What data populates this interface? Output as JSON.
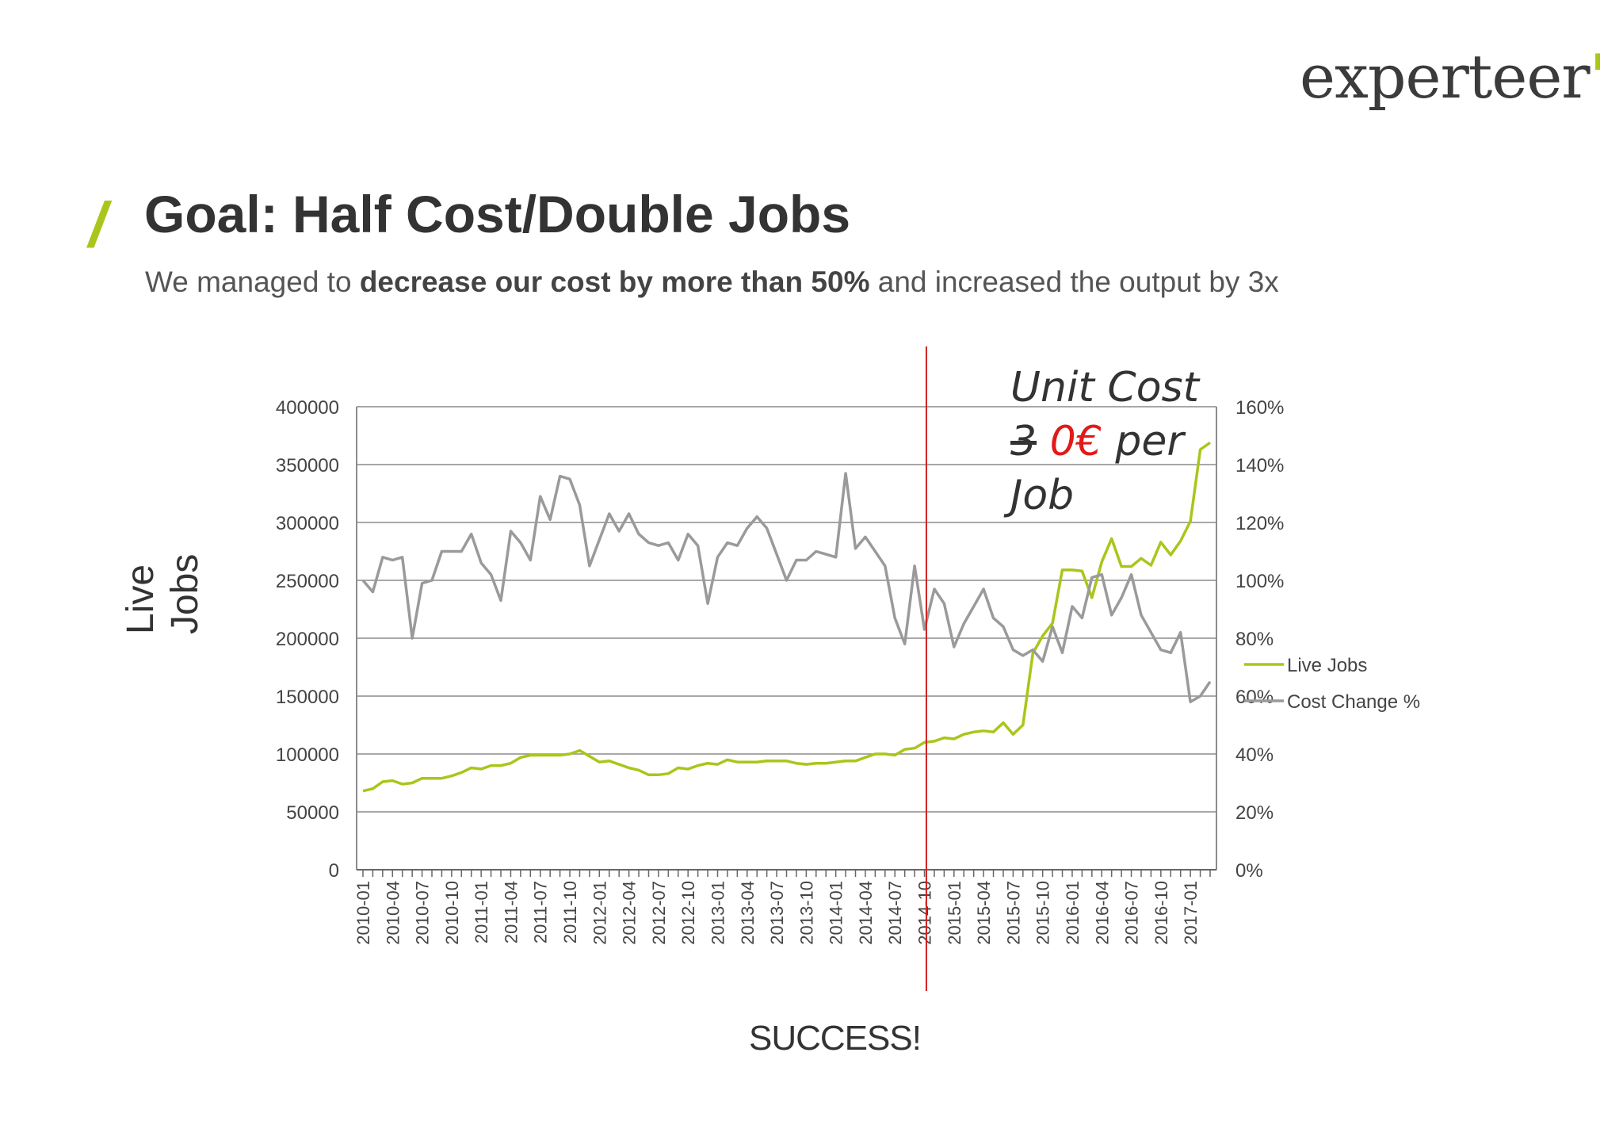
{
  "brand": {
    "logo": "experteer",
    "logo_mark": "'"
  },
  "header": {
    "title": "Goal: Half Cost/Double Jobs",
    "subtitle_pre": "We managed to ",
    "subtitle_bold": "decrease our cost by more than 50%",
    "subtitle_post": " and increased the output by 3x"
  },
  "annotation": {
    "line1": "Unit Cost",
    "old_value": "3",
    "new_value": "0€",
    "per": " per",
    "line3": "Job"
  },
  "footer": {
    "success": "SUCCESS!"
  },
  "y_axis_title": "Live Jobs",
  "colors": {
    "accent": "#a9c61a",
    "gray_series": "#9a9a9a",
    "marker": "#d02020",
    "highlight": "#e11a1a"
  },
  "chart_data": {
    "type": "line",
    "title": "",
    "xlabel": "",
    "ylabel": "Live Jobs",
    "ylim": [
      0,
      400000
    ],
    "y2lim": [
      0,
      1.6
    ],
    "y_ticks": [
      "0",
      "50000",
      "100000",
      "150000",
      "200000",
      "250000",
      "300000",
      "350000",
      "400000"
    ],
    "y2_ticks": [
      "0%",
      "20%",
      "40%",
      "60%",
      "80%",
      "100%",
      "120%",
      "140%",
      "160%"
    ],
    "x_tick_labels": [
      "2010-01",
      "2010-04",
      "2010-07",
      "2010-10",
      "2011-01",
      "2011-04",
      "2011-07",
      "2011-10",
      "2012-01",
      "2012-04",
      "2012-07",
      "2012-10",
      "2013-01",
      "2013-04",
      "2013-07",
      "2013-10",
      "2014-01",
      "2014-04",
      "2014-07",
      "2014-10",
      "2015-01",
      "2015-04",
      "2015-07",
      "2015-10",
      "2016-01",
      "2016-04",
      "2016-07",
      "2016-10",
      "2017-01"
    ],
    "x_start": "2010-01",
    "marker_at": "2014-11",
    "legend": [
      "Live Jobs",
      "Cost Change %"
    ],
    "legend_position": "right",
    "series": [
      {
        "name": "Live Jobs",
        "axis": "left",
        "color": "#a9c61a",
        "values": [
          68000,
          70000,
          76000,
          77000,
          74000,
          75000,
          79000,
          79000,
          79000,
          81000,
          84000,
          88000,
          87000,
          90000,
          90000,
          92000,
          97000,
          99000,
          99000,
          99000,
          99000,
          100000,
          103000,
          98000,
          93000,
          94000,
          91000,
          88000,
          86000,
          82000,
          82000,
          83000,
          88000,
          87000,
          90000,
          92000,
          91000,
          95000,
          93000,
          93000,
          93000,
          94000,
          94000,
          94000,
          92000,
          91000,
          92000,
          92000,
          93000,
          94000,
          94000,
          97000,
          100000,
          100000,
          99000,
          104000,
          105000,
          110000,
          111000,
          114000,
          113000,
          117000,
          119000,
          120000,
          119000,
          127000,
          117000,
          125000,
          187000,
          202000,
          213000,
          259000,
          259000,
          258000,
          235000,
          266000,
          286000,
          262000,
          262000,
          269000,
          263000,
          283000,
          272000,
          284000,
          301000,
          363000,
          369000
        ]
      },
      {
        "name": "Cost Change %",
        "axis": "right",
        "color": "#9a9a9a",
        "values": [
          1.0,
          0.96,
          1.08,
          1.07,
          1.08,
          0.8,
          0.99,
          1.0,
          1.1,
          1.1,
          1.1,
          1.16,
          1.06,
          1.02,
          0.93,
          1.17,
          1.13,
          1.07,
          1.29,
          1.21,
          1.36,
          1.35,
          1.26,
          1.05,
          1.14,
          1.23,
          1.17,
          1.23,
          1.16,
          1.13,
          1.12,
          1.13,
          1.07,
          1.16,
          1.12,
          0.92,
          1.08,
          1.13,
          1.12,
          1.18,
          1.22,
          1.18,
          1.09,
          1.0,
          1.07,
          1.07,
          1.1,
          1.09,
          1.08,
          1.37,
          1.11,
          1.15,
          1.1,
          1.05,
          0.87,
          0.78,
          1.05,
          0.83,
          0.97,
          0.92,
          0.77,
          0.85,
          0.91,
          0.97,
          0.87,
          0.84,
          0.76,
          0.74,
          0.76,
          0.72,
          0.84,
          0.75,
          0.91,
          0.87,
          1.01,
          1.02,
          0.88,
          0.94,
          1.02,
          0.88,
          0.82,
          0.76,
          0.75,
          0.82,
          0.58,
          0.6,
          0.65
        ]
      }
    ]
  }
}
